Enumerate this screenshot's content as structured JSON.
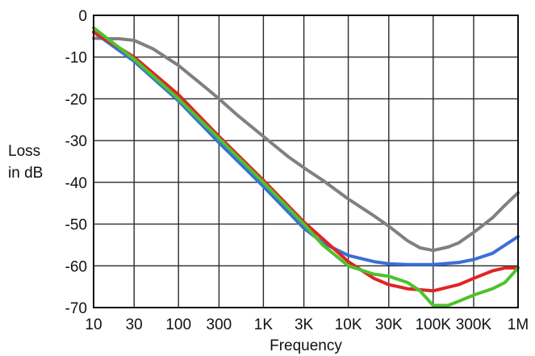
{
  "chart_data": {
    "type": "line",
    "title": "",
    "xlabel": "Frequency",
    "ylabel": [
      "Loss",
      "in dB"
    ],
    "xscale": "log",
    "xlim": [
      10,
      1000000
    ],
    "ylim": [
      -70,
      0
    ],
    "grid": true,
    "x_ticks": [
      {
        "value": 10,
        "label": "10"
      },
      {
        "value": 30,
        "label": "30"
      },
      {
        "value": 100,
        "label": "100"
      },
      {
        "value": 300,
        "label": "300"
      },
      {
        "value": 1000,
        "label": "1K"
      },
      {
        "value": 3000,
        "label": "3K"
      },
      {
        "value": 10000,
        "label": "10K"
      },
      {
        "value": 30000,
        "label": "30K"
      },
      {
        "value": 100000,
        "label": "100K"
      },
      {
        "value": 300000,
        "label": "300K"
      },
      {
        "value": 1000000,
        "label": "1M"
      }
    ],
    "y_ticks": [
      {
        "value": 0,
        "label": "0"
      },
      {
        "value": -10,
        "label": "-10"
      },
      {
        "value": -20,
        "label": "-20"
      },
      {
        "value": -30,
        "label": "-30"
      },
      {
        "value": -40,
        "label": "-40"
      },
      {
        "value": -50,
        "label": "-50"
      },
      {
        "value": -60,
        "label": "-60"
      },
      {
        "value": -70,
        "label": "-70"
      }
    ],
    "series": [
      {
        "color": "#808080",
        "points": [
          [
            10,
            -5.5
          ],
          [
            15,
            -5.6
          ],
          [
            20,
            -5.6
          ],
          [
            30,
            -6
          ],
          [
            50,
            -8
          ],
          [
            100,
            -12
          ],
          [
            200,
            -17
          ],
          [
            300,
            -20
          ],
          [
            500,
            -24
          ],
          [
            1000,
            -29
          ],
          [
            2000,
            -34
          ],
          [
            3000,
            -36.5
          ],
          [
            5000,
            -39.5
          ],
          [
            10000,
            -44
          ],
          [
            20000,
            -48
          ],
          [
            30000,
            -50.5
          ],
          [
            50000,
            -54
          ],
          [
            70000,
            -55.7
          ],
          [
            100000,
            -56.3
          ],
          [
            150000,
            -55.5
          ],
          [
            200000,
            -54.5
          ],
          [
            300000,
            -52
          ],
          [
            500000,
            -48.5
          ],
          [
            700000,
            -45.5
          ],
          [
            1000000,
            -42.5
          ]
        ]
      },
      {
        "color": "#3a6fd6",
        "points": [
          [
            10,
            -4
          ],
          [
            30,
            -11
          ],
          [
            100,
            -20.5
          ],
          [
            300,
            -30.5
          ],
          [
            1000,
            -41
          ],
          [
            3000,
            -51
          ],
          [
            5000,
            -54.5
          ],
          [
            10000,
            -57.5
          ],
          [
            20000,
            -59
          ],
          [
            30000,
            -59.5
          ],
          [
            50000,
            -59.7
          ],
          [
            100000,
            -59.7
          ],
          [
            200000,
            -59.2
          ],
          [
            300000,
            -58.5
          ],
          [
            500000,
            -57
          ],
          [
            1000000,
            -53
          ]
        ]
      },
      {
        "color": "#e02424",
        "points": [
          [
            10,
            -4
          ],
          [
            30,
            -10
          ],
          [
            100,
            -19
          ],
          [
            300,
            -29
          ],
          [
            1000,
            -39.5
          ],
          [
            3000,
            -49.5
          ],
          [
            5000,
            -53.5
          ],
          [
            10000,
            -59
          ],
          [
            20000,
            -63
          ],
          [
            30000,
            -64.5
          ],
          [
            50000,
            -65.5
          ],
          [
            100000,
            -66
          ],
          [
            200000,
            -64.5
          ],
          [
            300000,
            -63
          ],
          [
            500000,
            -61.2
          ],
          [
            700000,
            -60.5
          ],
          [
            1000000,
            -60.5
          ]
        ]
      },
      {
        "color": "#4cc32d",
        "points": [
          [
            10,
            -3
          ],
          [
            30,
            -10.5
          ],
          [
            100,
            -20
          ],
          [
            300,
            -29.5
          ],
          [
            1000,
            -40
          ],
          [
            3000,
            -50
          ],
          [
            5000,
            -55
          ],
          [
            10000,
            -60
          ],
          [
            20000,
            -62
          ],
          [
            30000,
            -62.5
          ],
          [
            50000,
            -64
          ],
          [
            70000,
            -66
          ],
          [
            100000,
            -69.5
          ],
          [
            150000,
            -69.5
          ],
          [
            200000,
            -68.5
          ],
          [
            300000,
            -67
          ],
          [
            500000,
            -65.5
          ],
          [
            700000,
            -64
          ],
          [
            1000000,
            -60.5
          ]
        ]
      }
    ]
  }
}
